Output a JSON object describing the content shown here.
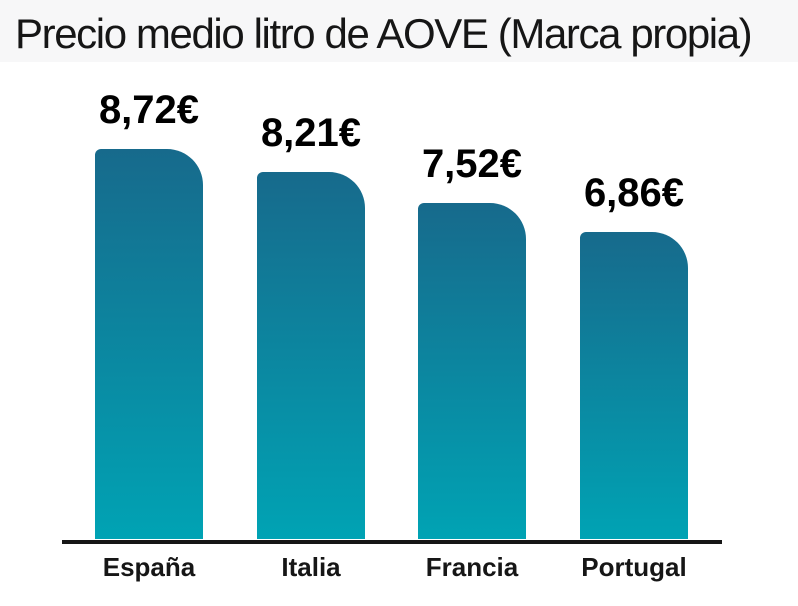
{
  "chart_data": {
    "type": "bar",
    "title": "Precio medio litro de AOVE (Marca propia)",
    "categories": [
      "España",
      "Italia",
      "Francia",
      "Portugal"
    ],
    "values": [
      8.72,
      8.21,
      7.52,
      6.86
    ],
    "value_labels": [
      "8,72€",
      "8,21€",
      "7,52€",
      "6,86€"
    ],
    "unit": "€",
    "decimal_separator": ",",
    "xlabel": "",
    "ylabel": "",
    "ylim": [
      0,
      8.72
    ],
    "grid": false,
    "legend": false,
    "orientation": "vertical"
  },
  "colors": {
    "bar_gradient_top": "#176a8c",
    "bar_gradient_bottom": "#00a3b4",
    "axis_line": "#161616",
    "title_text": "#161616",
    "value_text": "#000000",
    "category_text": "#161616",
    "header_band": "#f7f7f8",
    "background": "#ffffff"
  }
}
